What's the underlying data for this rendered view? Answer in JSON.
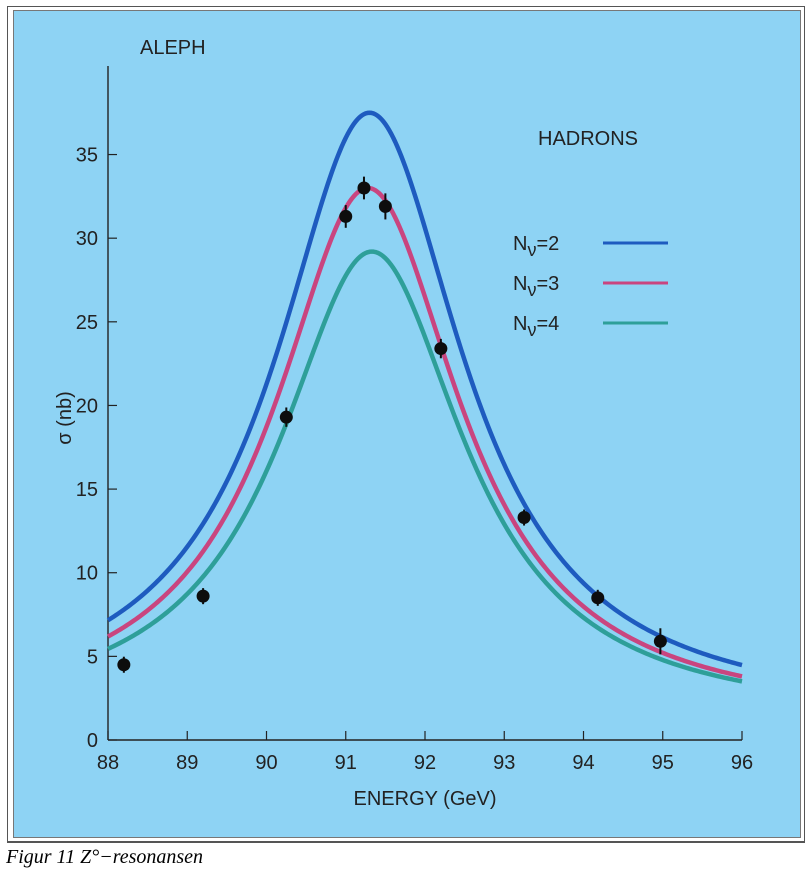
{
  "caption": "Figur 11 Z°−resonansen",
  "chart_data": {
    "type": "line",
    "title": "ALEPH",
    "panel_label": "HADRONS",
    "xlabel": "ENERGY (GeV)",
    "ylabel": "σ (nb)",
    "xlim": [
      88,
      96
    ],
    "ylim": [
      0,
      38.5
    ],
    "x_ticks": [
      "88",
      "89",
      "90",
      "91",
      "92",
      "93",
      "94",
      "95",
      "96"
    ],
    "y_ticks": [
      "0",
      "5",
      "10",
      "15",
      "20",
      "25",
      "30",
      "35"
    ],
    "grid": false,
    "legend_position": "right",
    "series": [
      {
        "name": "N",
        "subscript": "ν",
        "suffix": "=2",
        "color": "#1e5bbf",
        "peak_x": 91.3,
        "peak_y": 37.5,
        "halfwidth": 1.44,
        "ref_x": 96,
        "ref_y": 4.6
      },
      {
        "name": "N",
        "subscript": "ν",
        "suffix": "=3",
        "color": "#c9457f",
        "peak_x": 91.28,
        "peak_y": 33.0,
        "halfwidth": 1.42,
        "ref_x": 96,
        "ref_y": 3.9
      },
      {
        "name": "N",
        "subscript": "ν",
        "suffix": "=4",
        "color": "#2e9f99",
        "peak_x": 91.33,
        "peak_y": 29.2,
        "halfwidth": 1.42,
        "ref_x": 96,
        "ref_y": 3.6
      }
    ],
    "points": {
      "x": [
        88.2,
        89.2,
        90.25,
        91.0,
        91.23,
        91.5,
        92.2,
        93.25,
        94.18,
        94.97
      ],
      "y": [
        4.5,
        8.6,
        19.3,
        31.3,
        33.0,
        31.9,
        23.4,
        13.3,
        8.5,
        5.9
      ],
      "err": [
        0.3,
        0.3,
        0.4,
        0.5,
        0.5,
        0.6,
        0.4,
        0.3,
        0.3,
        0.6
      ],
      "color": "#0d0d0d"
    }
  }
}
